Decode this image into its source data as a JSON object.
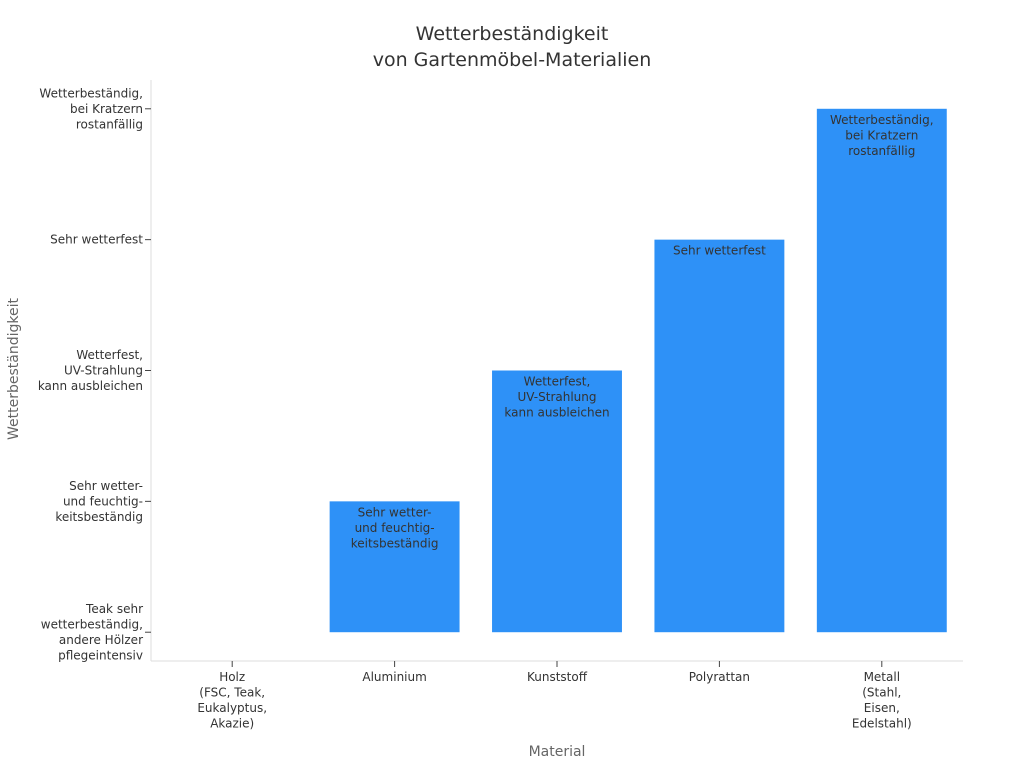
{
  "chart_data": {
    "type": "bar",
    "title": [
      "Wetterbeständigkeit",
      "von Gartenmöbel-Materialien"
    ],
    "xlabel": "Material",
    "ylabel": "Wetterbeständigkeit",
    "categories": [
      [
        "Holz",
        "(FSC, Teak,",
        "Eukalyptus,",
        "Akazie)"
      ],
      [
        "Aluminium"
      ],
      [
        "Kunststoff"
      ],
      [
        "Polyrattan"
      ],
      [
        "Metall",
        "(Stahl,",
        "Eisen,",
        "Edelstahl)"
      ]
    ],
    "y_levels": [
      [
        "Teak sehr",
        "wetterbeständig,",
        "andere Hölzer",
        "pflegeintensiv"
      ],
      [
        "Sehr wetter-",
        "und feuchtig-",
        "keitsbeständig"
      ],
      [
        "Wetterfest,",
        "UV-Strahlung",
        "kann ausbleichen"
      ],
      [
        "Sehr wetterfest"
      ],
      [
        "Wetterbeständig,",
        "bei Kratzern",
        "rostanfällig"
      ]
    ],
    "values": [
      0,
      1,
      2,
      3,
      4
    ],
    "ylim": [
      -0.22,
      4.22
    ],
    "grid": false,
    "bar_color": "#2e91f7",
    "axis_color": "#dddddd"
  }
}
